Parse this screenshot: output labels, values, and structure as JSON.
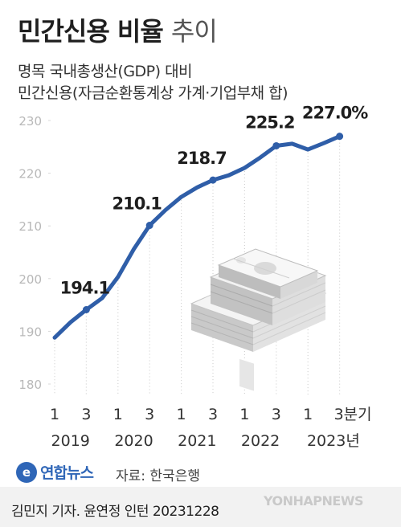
{
  "header": {
    "title_bold": "민간신용 비율",
    "title_light": "추이",
    "subtitle_line1": "명목 국내총생산(GDP) 대비",
    "subtitle_line2": "민간신용(자금순환통계상 가계·기업부채 합)"
  },
  "chart_data": {
    "type": "line",
    "x_labels": [
      "1",
      "3",
      "1",
      "3",
      "1",
      "3",
      "1",
      "3",
      "1",
      "3분기"
    ],
    "year_labels": [
      "2019",
      "2020",
      "2021",
      "2022",
      "2023년"
    ],
    "series": [
      {
        "x": [
          "2019-Q1",
          "2019-Q2",
          "2019-Q3",
          "2019-Q4",
          "2020-Q1",
          "2020-Q2",
          "2020-Q3",
          "2020-Q4",
          "2021-Q1",
          "2021-Q2",
          "2021-Q3",
          "2021-Q4",
          "2022-Q1",
          "2022-Q2",
          "2022-Q3",
          "2022-Q4",
          "2023-Q1",
          "2023-Q2",
          "2023-Q3"
        ],
        "values": [
          188.8,
          191.7,
          194.1,
          196.3,
          200.3,
          205.6,
          210.1,
          213.0,
          215.5,
          217.3,
          218.7,
          219.6,
          221.0,
          223.0,
          225.2,
          225.6,
          224.5,
          225.7,
          227.0
        ]
      }
    ],
    "annotations": [
      {
        "x": "2019-Q3",
        "label": "194.1"
      },
      {
        "x": "2020-Q3",
        "label": "210.1"
      },
      {
        "x": "2021-Q3",
        "label": "218.7"
      },
      {
        "x": "2022-Q3",
        "label": "225.2"
      },
      {
        "x": "2023-Q3",
        "label": "227.0%"
      }
    ],
    "y_ticks": [
      180,
      190,
      200,
      210,
      220,
      230
    ],
    "ylim": [
      180,
      230
    ],
    "grid": false,
    "line_color": "#2f5ea8"
  },
  "footer": {
    "logo_mark": "e",
    "logo_text": "연합뉴스",
    "source": "자료: 한국은행",
    "credit": "김민지 기자. 윤연정 인턴  20231228",
    "watermark": "YONHAPNEWS"
  }
}
